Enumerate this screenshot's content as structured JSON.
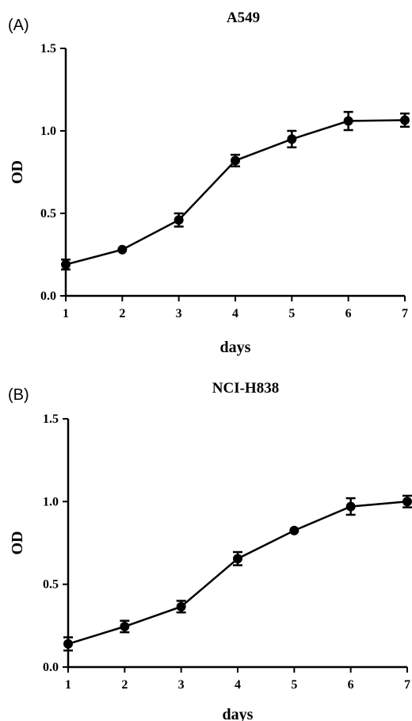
{
  "chart_data": [
    {
      "panel": "(A)",
      "type": "line",
      "title": "A549",
      "xlabel": "days",
      "ylabel": "OD",
      "x": [
        1,
        2,
        3,
        4,
        5,
        6,
        7
      ],
      "xticks": [
        "1",
        "2",
        "3",
        "4",
        "5",
        "6",
        "7"
      ],
      "yticks": [
        "0.0",
        "0.5",
        "1.0",
        "1.5"
      ],
      "ylim": [
        0,
        1.5
      ],
      "series": [
        {
          "values": [
            0.19,
            0.28,
            0.46,
            0.82,
            0.95,
            1.06,
            1.065
          ],
          "errors": [
            0.03,
            0.0,
            0.04,
            0.035,
            0.05,
            0.055,
            0.04
          ]
        }
      ]
    },
    {
      "panel": "(B)",
      "type": "line",
      "title": "NCI-H838",
      "xlabel": "days",
      "ylabel": "OD",
      "x": [
        1,
        2,
        3,
        4,
        5,
        6,
        7
      ],
      "xticks": [
        "1",
        "2",
        "3",
        "4",
        "5",
        "6",
        "7"
      ],
      "yticks": [
        "0.0",
        "0.5",
        "1.0",
        "1.5"
      ],
      "ylim": [
        0,
        1.5
      ],
      "series": [
        {
          "values": [
            0.14,
            0.245,
            0.365,
            0.655,
            0.825,
            0.97,
            1.0
          ],
          "errors": [
            0.04,
            0.035,
            0.035,
            0.04,
            0.0,
            0.05,
            0.035
          ]
        }
      ]
    }
  ]
}
